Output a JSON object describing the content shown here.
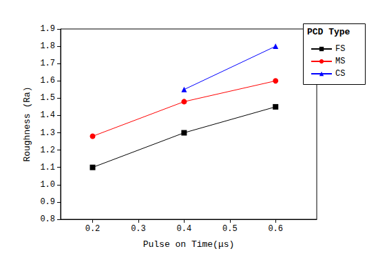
{
  "chart_data": {
    "type": "line",
    "x_label": "Pulse on Time(μs)",
    "y_label": "Roughness (Ra)",
    "legend_title": "PCD Type",
    "legend": "upper right",
    "grid": false,
    "x": [
      0.2,
      0.4,
      0.6
    ],
    "xlim": [
      0.13,
      0.69
    ],
    "xticks": [
      0.2,
      0.3,
      0.4,
      0.5,
      0.6
    ],
    "ylim": [
      0.8,
      1.9
    ],
    "yticks": [
      0.8,
      0.9,
      {
        "value": 1,
        "label": "1.0"
      },
      1.1,
      1.2,
      1.3,
      1.4,
      1.5,
      1.6,
      1.7,
      1.8,
      1.9
    ],
    "series": [
      {
        "name": "FS",
        "color": "#000000",
        "marker": "square",
        "values": [
          1.1,
          1.3,
          1.45
        ]
      },
      {
        "name": "MS",
        "color": "#ff0000",
        "marker": "circle",
        "values": [
          1.28,
          1.48,
          1.6
        ]
      },
      {
        "name": "CS",
        "color": "#0000ff",
        "marker": "triangle",
        "values": [
          null,
          1.55,
          1.8
        ]
      }
    ]
  }
}
